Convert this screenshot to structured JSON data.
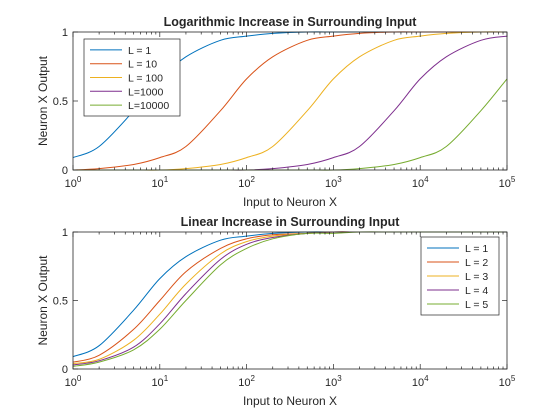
{
  "chart_data": [
    {
      "type": "line",
      "title": "Logarithmic Increase in Surrounding Input",
      "xlabel": "Input to Neuron X",
      "ylabel": "Neuron X Output",
      "xscale": "log",
      "xlim": [
        1,
        100000
      ],
      "ylim": [
        0,
        1
      ],
      "xticks": [
        {
          "base": "10",
          "exp": "0"
        },
        {
          "base": "10",
          "exp": "1"
        },
        {
          "base": "10",
          "exp": "2"
        },
        {
          "base": "10",
          "exp": "3"
        },
        {
          "base": "10",
          "exp": "4"
        },
        {
          "base": "10",
          "exp": "5"
        }
      ],
      "yticks": [
        "0",
        "0.5",
        "1"
      ],
      "legend_position": "top-left",
      "grid": false,
      "x": [
        1,
        2,
        5,
        10,
        20,
        50,
        100,
        200,
        500,
        1000,
        2000,
        5000,
        10000,
        20000,
        50000,
        100000
      ],
      "series": [
        {
          "name": "L = 1",
          "color": "#0072BD",
          "values": [
            0.09,
            0.17,
            0.43,
            0.66,
            0.82,
            0.94,
            0.97,
            0.99,
            1.0,
            1.0,
            1.0,
            1.0,
            1.0,
            1.0,
            1.0,
            1.0
          ]
        },
        {
          "name": "L = 10",
          "color": "#D95319",
          "values": [
            0.0,
            0.01,
            0.04,
            0.09,
            0.17,
            0.43,
            0.66,
            0.82,
            0.94,
            0.97,
            0.99,
            1.0,
            1.0,
            1.0,
            1.0,
            1.0
          ]
        },
        {
          "name": "L = 100",
          "color": "#EDB120",
          "values": [
            0.0,
            0.0,
            0.0,
            0.0,
            0.01,
            0.04,
            0.09,
            0.17,
            0.43,
            0.66,
            0.82,
            0.94,
            0.97,
            0.99,
            1.0,
            1.0
          ]
        },
        {
          "name": "L=1000",
          "color": "#7E2F8E",
          "values": [
            0.0,
            0.0,
            0.0,
            0.0,
            0.0,
            0.0,
            0.0,
            0.01,
            0.04,
            0.09,
            0.17,
            0.43,
            0.66,
            0.82,
            0.94,
            0.97
          ]
        },
        {
          "name": "L=10000",
          "color": "#77AC30",
          "values": [
            0.0,
            0.0,
            0.0,
            0.0,
            0.0,
            0.0,
            0.0,
            0.0,
            0.0,
            0.0,
            0.01,
            0.04,
            0.09,
            0.17,
            0.43,
            0.66
          ]
        }
      ]
    },
    {
      "type": "line",
      "title": "Linear Increase in Surrounding Input",
      "xlabel": "Input to Neuron X",
      "ylabel": "Neuron X Output",
      "xscale": "log",
      "xlim": [
        1,
        100000
      ],
      "ylim": [
        0,
        1
      ],
      "xticks": [
        {
          "base": "10",
          "exp": "0"
        },
        {
          "base": "10",
          "exp": "1"
        },
        {
          "base": "10",
          "exp": "2"
        },
        {
          "base": "10",
          "exp": "3"
        },
        {
          "base": "10",
          "exp": "4"
        },
        {
          "base": "10",
          "exp": "5"
        }
      ],
      "yticks": [
        "0",
        "0.5",
        "1"
      ],
      "legend_position": "top-right",
      "grid": false,
      "x": [
        1,
        2,
        5,
        10,
        20,
        50,
        100,
        200,
        500,
        1000,
        2000,
        5000,
        10000,
        20000,
        50000,
        100000
      ],
      "series": [
        {
          "name": "L = 1",
          "color": "#0072BD",
          "values": [
            0.09,
            0.17,
            0.43,
            0.66,
            0.82,
            0.94,
            0.97,
            0.99,
            1.0,
            1.0,
            1.0,
            1.0,
            1.0,
            1.0,
            1.0,
            1.0
          ]
        },
        {
          "name": "L = 2",
          "color": "#D95319",
          "values": [
            0.05,
            0.1,
            0.29,
            0.5,
            0.71,
            0.88,
            0.95,
            0.98,
            0.99,
            1.0,
            1.0,
            1.0,
            1.0,
            1.0,
            1.0,
            1.0
          ]
        },
        {
          "name": "L = 3",
          "color": "#EDB120",
          "values": [
            0.04,
            0.07,
            0.21,
            0.4,
            0.62,
            0.84,
            0.93,
            0.97,
            0.99,
            1.0,
            1.0,
            1.0,
            1.0,
            1.0,
            1.0,
            1.0
          ]
        },
        {
          "name": "L = 4",
          "color": "#7E2F8E",
          "values": [
            0.03,
            0.06,
            0.16,
            0.33,
            0.55,
            0.8,
            0.91,
            0.96,
            0.99,
            1.0,
            1.0,
            1.0,
            1.0,
            1.0,
            1.0,
            1.0
          ]
        },
        {
          "name": "L = 5",
          "color": "#77AC30",
          "values": [
            0.02,
            0.05,
            0.14,
            0.29,
            0.5,
            0.76,
            0.88,
            0.95,
            0.99,
            0.99,
            1.0,
            1.0,
            1.0,
            1.0,
            1.0,
            1.0
          ]
        }
      ]
    }
  ]
}
